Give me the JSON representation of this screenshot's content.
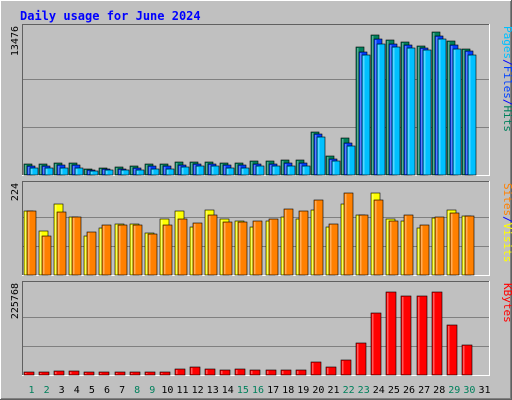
{
  "title": "Daily usage for June 2024",
  "colors": {
    "background": "#c0c0c0",
    "plot": "#c0c0c0",
    "title": "#0000ff",
    "hits": "#00805c",
    "files": "#0040ff",
    "pages": "#00c0ff",
    "visits": "#ffff00",
    "sites": "#ff8000",
    "kbytes": "#ff0000",
    "weekday": "#000000",
    "weekend": "#00805c"
  },
  "chart_data": [
    {
      "type": "bar",
      "panel": "hits-files-pages",
      "max_label": "13476",
      "ylim": [
        0,
        13476
      ],
      "grid": true,
      "right_labels": [
        {
          "text": "Pages",
          "color_key": "pages"
        },
        {
          "text": "/",
          "color_key": "title"
        },
        {
          "text": "Files",
          "color_key": "files"
        },
        {
          "text": "/",
          "color_key": "title"
        },
        {
          "text": "Hits",
          "color_key": "hits"
        }
      ],
      "categories": [
        "1",
        "2",
        "3",
        "4",
        "5",
        "6",
        "7",
        "8",
        "9",
        "10",
        "11",
        "12",
        "13",
        "14",
        "15",
        "16",
        "17",
        "18",
        "19",
        "20",
        "21",
        "22",
        "23",
        "24",
        "25",
        "26",
        "27",
        "28",
        "29",
        "30",
        "31"
      ],
      "series": [
        {
          "name": "Hits",
          "color_key": "hits",
          "values": [
            1050,
            1050,
            1150,
            1150,
            550,
            650,
            750,
            850,
            1000,
            1000,
            1200,
            1250,
            1250,
            1100,
            1100,
            1300,
            1300,
            1400,
            1400,
            4000,
            1800,
            3500,
            12000,
            13100,
            12600,
            12400,
            12100,
            13400,
            12500,
            11800,
            0
          ]
        },
        {
          "name": "Files",
          "color_key": "files",
          "values": [
            850,
            850,
            900,
            900,
            450,
            550,
            600,
            700,
            800,
            800,
            950,
            1000,
            1000,
            900,
            900,
            1050,
            1050,
            1100,
            1100,
            3800,
            1500,
            3000,
            11500,
            12700,
            12300,
            12200,
            11900,
            13000,
            12200,
            11600,
            0
          ]
        },
        {
          "name": "Pages",
          "color_key": "pages",
          "values": [
            650,
            650,
            700,
            700,
            350,
            450,
            450,
            500,
            600,
            600,
            750,
            800,
            800,
            700,
            700,
            800,
            800,
            850,
            850,
            3600,
            1300,
            2700,
            11200,
            12300,
            12000,
            11900,
            11700,
            12700,
            11800,
            11200,
            0
          ]
        }
      ]
    },
    {
      "type": "bar",
      "panel": "visits-sites",
      "max_label": "224",
      "ylim": [
        0,
        224
      ],
      "grid": true,
      "right_labels": [
        {
          "text": "Sites",
          "color_key": "sites"
        },
        {
          "text": "/",
          "color_key": "title"
        },
        {
          "text": "Visits",
          "color_key": "visits"
        }
      ],
      "categories": [
        "1",
        "2",
        "3",
        "4",
        "5",
        "6",
        "7",
        "8",
        "9",
        "10",
        "11",
        "12",
        "13",
        "14",
        "15",
        "16",
        "17",
        "18",
        "19",
        "20",
        "21",
        "22",
        "23",
        "24",
        "25",
        "26",
        "27",
        "28",
        "29",
        "30",
        "31"
      ],
      "series": [
        {
          "name": "Visits",
          "color_key": "visits",
          "values": [
            165,
            112,
            184,
            150,
            100,
            120,
            132,
            132,
            108,
            144,
            164,
            124,
            168,
            145,
            140,
            124,
            140,
            150,
            144,
            168,
            124,
            184,
            155,
            210,
            144,
            140,
            120,
            148,
            168,
            153,
            0
          ]
        },
        {
          "name": "Sites",
          "color_key": "sites",
          "values": [
            165,
            100,
            162,
            150,
            110,
            128,
            130,
            130,
            106,
            128,
            144,
            135,
            155,
            136,
            136,
            138,
            145,
            170,
            164,
            192,
            132,
            210,
            155,
            192,
            140,
            155,
            130,
            150,
            160,
            153,
            0
          ]
        }
      ]
    },
    {
      "type": "bar",
      "panel": "kbytes",
      "max_label": "225768",
      "ylim": [
        0,
        225768
      ],
      "grid": true,
      "right_labels": [
        {
          "text": "KBytes",
          "color_key": "kbytes"
        }
      ],
      "categories": [
        "1",
        "2",
        "3",
        "4",
        "5",
        "6",
        "7",
        "8",
        "9",
        "10",
        "11",
        "12",
        "13",
        "14",
        "15",
        "16",
        "17",
        "18",
        "19",
        "20",
        "21",
        "22",
        "23",
        "24",
        "25",
        "26",
        "27",
        "28",
        "29",
        "30",
        "31"
      ],
      "series": [
        {
          "name": "KBytes",
          "color_key": "kbytes",
          "values": [
            9000,
            9000,
            11000,
            11000,
            7000,
            9000,
            8000,
            9000,
            9000,
            9000,
            16000,
            20000,
            15000,
            13000,
            15000,
            13000,
            13000,
            13000,
            14000,
            35000,
            20000,
            38000,
            82000,
            160000,
            216000,
            206000,
            206000,
            216000,
            130000,
            78000,
            0
          ]
        }
      ]
    }
  ],
  "x_labels": [
    {
      "text": "1",
      "weekend": true
    },
    {
      "text": "2",
      "weekend": true
    },
    {
      "text": "3",
      "weekend": false
    },
    {
      "text": "4",
      "weekend": false
    },
    {
      "text": "5",
      "weekend": false
    },
    {
      "text": "6",
      "weekend": false
    },
    {
      "text": "7",
      "weekend": false
    },
    {
      "text": "8",
      "weekend": true
    },
    {
      "text": "9",
      "weekend": true
    },
    {
      "text": "10",
      "weekend": false
    },
    {
      "text": "11",
      "weekend": false
    },
    {
      "text": "12",
      "weekend": false
    },
    {
      "text": "13",
      "weekend": false
    },
    {
      "text": "14",
      "weekend": false
    },
    {
      "text": "15",
      "weekend": true
    },
    {
      "text": "16",
      "weekend": true
    },
    {
      "text": "17",
      "weekend": false
    },
    {
      "text": "18",
      "weekend": false
    },
    {
      "text": "19",
      "weekend": false
    },
    {
      "text": "20",
      "weekend": false
    },
    {
      "text": "21",
      "weekend": false
    },
    {
      "text": "22",
      "weekend": true
    },
    {
      "text": "23",
      "weekend": true
    },
    {
      "text": "24",
      "weekend": false
    },
    {
      "text": "25",
      "weekend": false
    },
    {
      "text": "26",
      "weekend": false
    },
    {
      "text": "27",
      "weekend": false
    },
    {
      "text": "28",
      "weekend": false
    },
    {
      "text": "29",
      "weekend": true
    },
    {
      "text": "30",
      "weekend": true
    },
    {
      "text": "31",
      "weekend": false
    }
  ]
}
